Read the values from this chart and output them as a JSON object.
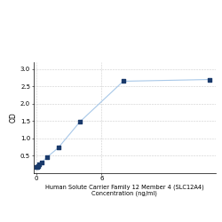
{
  "x": [
    0,
    0.0625,
    0.125,
    0.25,
    0.5,
    1,
    2,
    4,
    8,
    16
  ],
  "y": [
    0.175,
    0.19,
    0.21,
    0.25,
    0.32,
    0.47,
    0.73,
    1.48,
    2.65,
    2.7
  ],
  "line_color": "#a8c8e8",
  "marker_color": "#1a3a6b",
  "marker_size": 3.5,
  "xlabel_line1": "Human Solute Carrier Family 12 Member 4 (SLC12A4)",
  "xlabel_line2": "Concentration (ng/ml)",
  "ylabel": "OD",
  "xlim": [
    -0.3,
    16.5
  ],
  "ylim": [
    0.0,
    3.2
  ],
  "yticks": [
    0.5,
    1.0,
    1.5,
    2.0,
    2.5,
    3.0
  ],
  "xticks": [
    0,
    6
  ],
  "grid_color": "#cccccc",
  "background_color": "#ffffff",
  "xlabel_fontsize": 4.8,
  "ylabel_fontsize": 5.5,
  "tick_fontsize": 5.0
}
